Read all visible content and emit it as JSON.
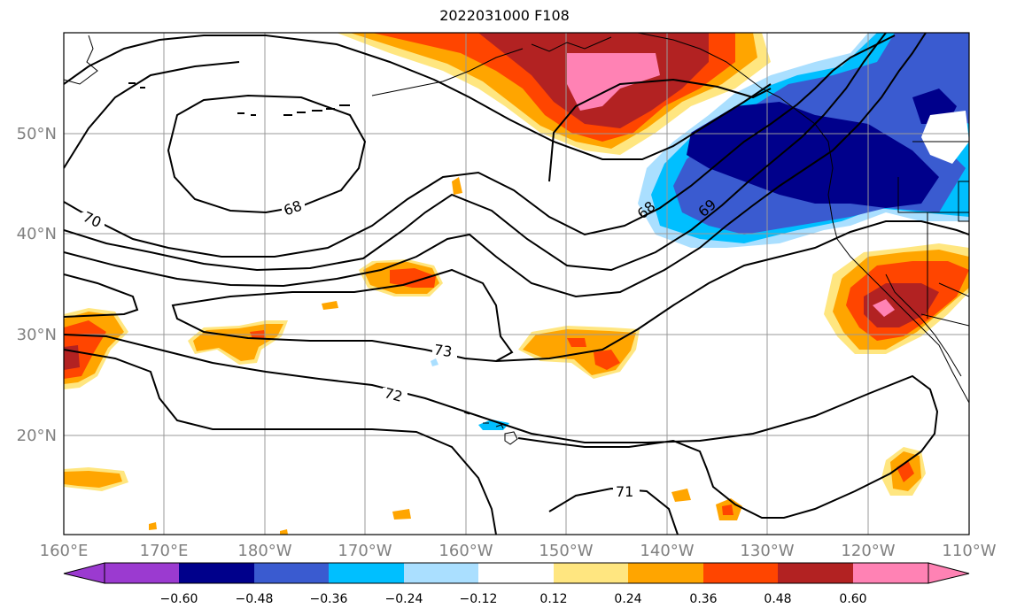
{
  "title": "2022031000 F108",
  "lon_labels": [
    "160°E",
    "170°E",
    "180°W",
    "170°W",
    "160°W",
    "150°W",
    "140°W",
    "130°W",
    "120°W",
    "110°W"
  ],
  "lat_labels": [
    "50°N",
    "40°N",
    "30°N",
    "20°N"
  ],
  "contour_labels": [
    "70",
    "68",
    "68",
    "69",
    "73",
    "72",
    "71"
  ],
  "colorbar": {
    "colors": [
      "#9b3ad0",
      "#00008b",
      "#3a5bd0",
      "#00bfff",
      "#aadfff",
      "#ffffff",
      "#ffe680",
      "#ffa500",
      "#ff4500",
      "#b22222",
      "#ff82b4"
    ],
    "tick_labels": [
      "−0.60",
      "−0.48",
      "−0.36",
      "−0.24",
      "−0.12",
      "0.12",
      "0.24",
      "0.36",
      "0.48",
      "0.60"
    ]
  }
}
